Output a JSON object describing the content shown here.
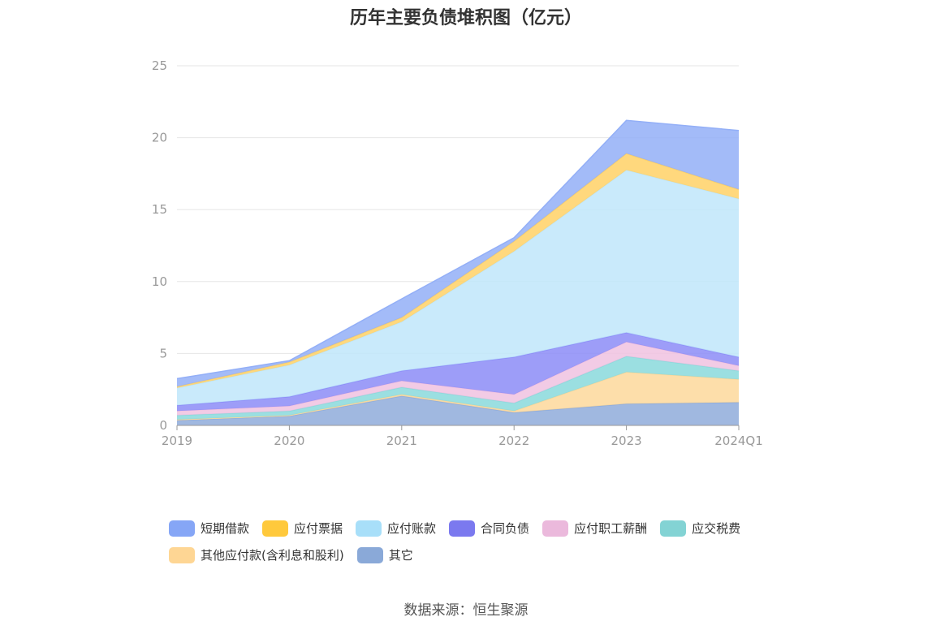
{
  "chart_data": {
    "type": "area",
    "stacked": true,
    "title": "历年主要负债堆积图（亿元）",
    "categories": [
      "2019",
      "2020",
      "2021",
      "2022",
      "2023",
      "2024Q1"
    ],
    "ylim": [
      0,
      25
    ],
    "yticks": [
      "0",
      "5",
      "10",
      "15",
      "20",
      "25"
    ],
    "grid": true,
    "legend_position": "bottom",
    "series": [
      {
        "name": "其它",
        "color": "#8facdb",
        "values": [
          0.35,
          0.65,
          2.05,
          0.9,
          1.5,
          1.6
        ]
      },
      {
        "name": "其他应付款(含利息和股利)",
        "color": "#fdd89b",
        "values": [
          0.05,
          0.05,
          0.1,
          0.1,
          2.2,
          1.6
        ]
      },
      {
        "name": "应交税费",
        "color": "#8ad9dc",
        "values": [
          0.3,
          0.3,
          0.5,
          0.55,
          1.1,
          0.6
        ]
      },
      {
        "name": "应付职工薪酬",
        "color": "#f0c2e0",
        "values": [
          0.3,
          0.35,
          0.45,
          0.6,
          1.0,
          0.35
        ]
      },
      {
        "name": "合同负债",
        "color": "#8c8cf7",
        "values": [
          0.4,
          0.65,
          0.7,
          2.6,
          0.65,
          0.6
        ]
      },
      {
        "name": "应付账款",
        "color": "#bfe6fa",
        "values": [
          1.2,
          2.2,
          3.4,
          7.35,
          11.3,
          11.0
        ]
      },
      {
        "name": "应付票据",
        "color": "#ffd166",
        "values": [
          0.1,
          0.2,
          0.3,
          0.7,
          1.15,
          0.65
        ]
      },
      {
        "name": "短期借款",
        "color": "#93aff7",
        "values": [
          0.55,
          0.1,
          1.3,
          0.25,
          2.3,
          4.1
        ]
      }
    ],
    "legend_order": [
      "短期借款",
      "应付票据",
      "应付账款",
      "合同负债",
      "应付职工薪酬",
      "应交税费",
      "其他应付款(含利息和股利)",
      "其它"
    ],
    "legend_colors": {
      "短期借款": "#86a6f6",
      "应付票据": "#ffc93c",
      "应付账款": "#a8dff9",
      "合同负债": "#7b79ef",
      "应付职工薪酬": "#ebb9dc",
      "应交税费": "#83d3d4",
      "其他应付款(含利息和股利)": "#fed694",
      "其它": "#8aa9d8"
    }
  },
  "source": "数据来源：恒生聚源"
}
